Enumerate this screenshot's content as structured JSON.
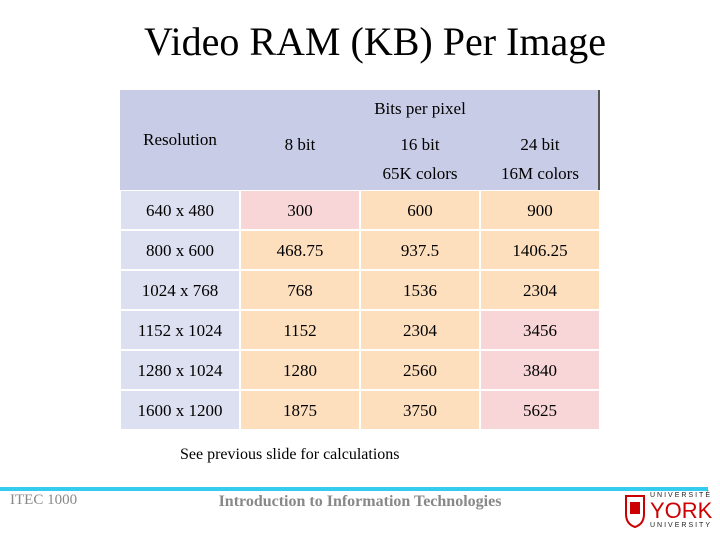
{
  "title": "Video RAM (KB) Per Image",
  "table": {
    "group_header": "Bits per pixel",
    "columns": [
      [
        "Resolution"
      ],
      [
        "8 bit"
      ],
      [
        "16 bit",
        "65K colors"
      ],
      [
        "24 bit",
        "16M colors"
      ]
    ],
    "rows": [
      [
        "640 x 480",
        "300",
        "600",
        "900"
      ],
      [
        "800 x 600",
        "468.75",
        "937.5",
        "1406.25"
      ],
      [
        "1024 x 768",
        "768",
        "1536",
        "2304"
      ],
      [
        "1152 x 1024",
        "1152",
        "2304",
        "3456"
      ],
      [
        "1280 x 1024",
        "1280",
        "2560",
        "3840"
      ],
      [
        "1600 x 1200",
        "1875",
        "3750",
        "5625"
      ]
    ]
  },
  "note": "See previous slide for calculations",
  "footer": {
    "course": "ITEC 1000",
    "subtitle": "Introduction to Information Technologies"
  },
  "logo": {
    "top": "UNIVERSITÉ",
    "middle": "YORK",
    "bottom": "UNIVERSITY"
  }
}
